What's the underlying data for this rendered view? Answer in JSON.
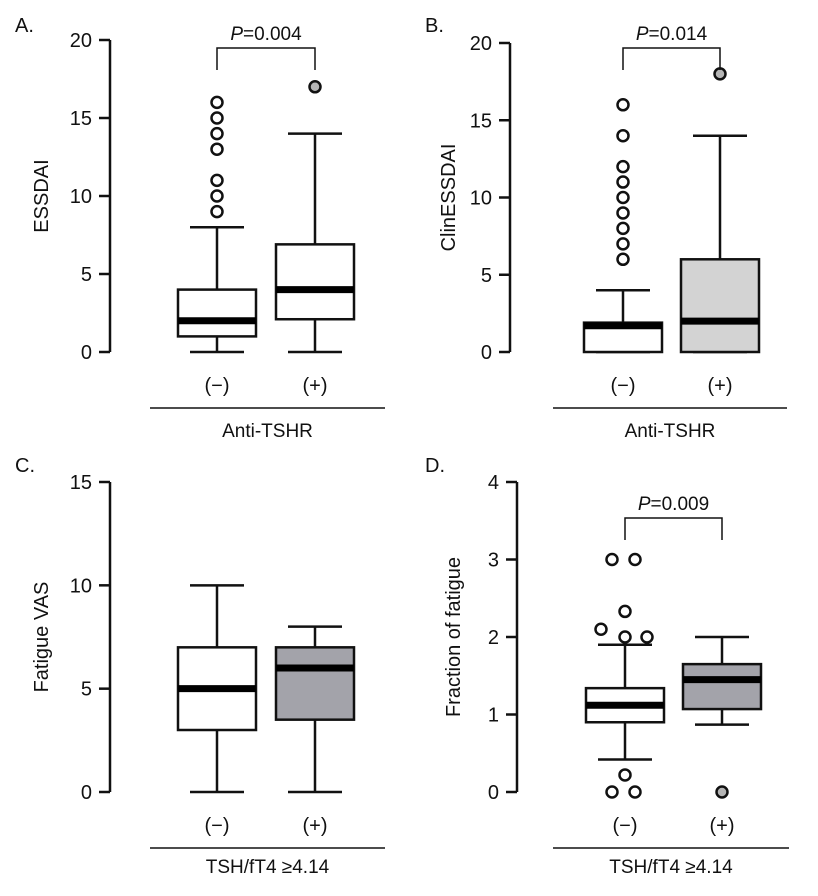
{
  "chart_data": [
    {
      "type": "box",
      "panel_label": "A.",
      "ylabel": "ESSDAI",
      "xlabel": "Anti-TSHR",
      "ylim": [
        0,
        20
      ],
      "yticks": [
        0,
        5,
        10,
        15,
        20
      ],
      "categories": [
        "(−)",
        "(+)"
      ],
      "pvalue": {
        "prefix": "P",
        "text": "=0.004"
      },
      "boxes": [
        {
          "min": 0,
          "q1": 1,
          "median": 2,
          "q3": 4,
          "max": 8,
          "outliers": [
            9,
            10,
            11,
            13,
            14,
            15,
            16
          ],
          "fill": "#ffffff",
          "outlier_fill": "#ffffff"
        },
        {
          "min": 0,
          "q1": 2.1,
          "median": 4,
          "q3": 6.9,
          "max": 14,
          "outliers": [
            17
          ],
          "fill": "#ffffff",
          "outlier_fill": "#b5b5b5"
        }
      ]
    },
    {
      "type": "box",
      "panel_label": "B.",
      "ylabel": "ClinESSDAI",
      "xlabel": "Anti-TSHR",
      "ylim": [
        0,
        20
      ],
      "yticks": [
        0,
        5,
        10,
        15,
        20
      ],
      "categories": [
        "(−)",
        "(+)"
      ],
      "pvalue": {
        "prefix": "P",
        "text": "=0.014"
      },
      "boxes": [
        {
          "min": 0,
          "q1": 0,
          "median": 1.7,
          "q3": 1.9,
          "max": 4,
          "outliers": [
            6,
            7,
            8,
            9,
            10,
            11,
            12,
            14,
            16
          ],
          "fill": "#ffffff",
          "outlier_fill": "#ffffff"
        },
        {
          "min": 0,
          "q1": 0,
          "median": 2,
          "q3": 6,
          "max": 14,
          "outliers": [
            18
          ],
          "fill": "#d3d3d3",
          "outlier_fill": "#b5b5b5"
        }
      ]
    },
    {
      "type": "box",
      "panel_label": "C.",
      "ylabel": "Fatigue VAS",
      "xlabel": "TSH/fT4 ≥4.14",
      "ylim": [
        0,
        15
      ],
      "yticks": [
        0,
        5,
        10,
        15
      ],
      "categories": [
        "(−)",
        "(+)"
      ],
      "pvalue": null,
      "boxes": [
        {
          "min": 0,
          "q1": 3,
          "median": 5,
          "q3": 7,
          "max": 10,
          "outliers": [],
          "fill": "#ffffff",
          "outlier_fill": "#ffffff"
        },
        {
          "min": 0,
          "q1": 3.5,
          "median": 6,
          "q3": 7,
          "max": 8,
          "outliers": [],
          "fill": "#a3a3aa",
          "outlier_fill": "#b5b5b5"
        }
      ]
    },
    {
      "type": "box",
      "panel_label": "D.",
      "ylabel": "Fraction of fatigue",
      "xlabel": "TSH/fT4 ≥4.14",
      "ylim": [
        0,
        4
      ],
      "yticks": [
        0,
        1,
        2,
        3,
        4
      ],
      "categories": [
        "(−)",
        "(+)"
      ],
      "pvalue": {
        "prefix": "P",
        "text": "=0.009"
      },
      "boxes": [
        {
          "min": 0.42,
          "q1": 0.9,
          "median": 1.12,
          "q3": 1.34,
          "max": 1.9,
          "outliers": [
            0,
            0,
            0.22,
            2.0,
            2.0,
            2.1,
            2.33,
            3,
            3
          ],
          "fill": "#ffffff",
          "outlier_fill": "#ffffff"
        },
        {
          "min": 0.87,
          "q1": 1.07,
          "median": 1.45,
          "q3": 1.65,
          "max": 2.0,
          "outliers": [
            0
          ],
          "fill": "#a3a3aa",
          "outlier_fill": "#b5b5b5"
        }
      ]
    }
  ]
}
